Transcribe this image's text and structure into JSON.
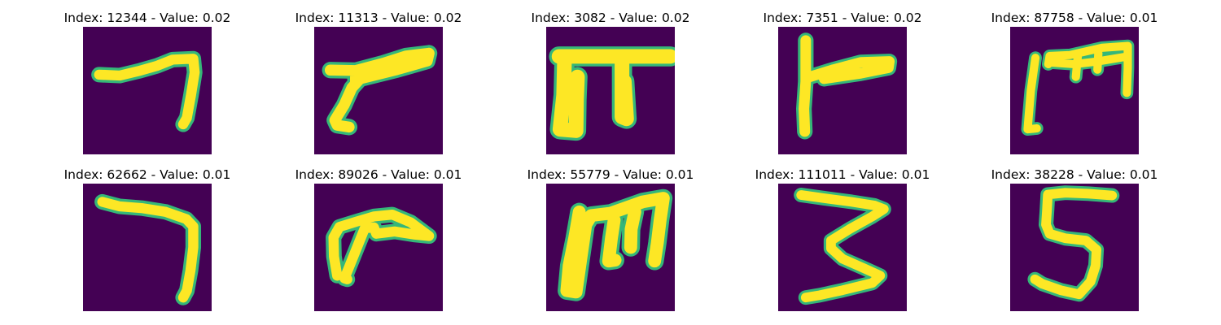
{
  "colors": {
    "background": "#440154",
    "stroke": "#fde725",
    "edge_mid": "#35b779",
    "edge_low": "#31688e"
  },
  "panels": [
    {
      "title": "Index: 12344 - Value: 0.02",
      "glyph": "seven-glyph-1"
    },
    {
      "title": "Index: 11313 - Value: 0.02",
      "glyph": "seven-glyph-2"
    },
    {
      "title": "Index: 3082 - Value: 0.02",
      "glyph": "pi-glyph"
    },
    {
      "title": "Index: 7351 - Value: 0.02",
      "glyph": "seven-glyph-3"
    },
    {
      "title": "Index: 87758 - Value: 0.01",
      "glyph": "m-glyph-1"
    },
    {
      "title": "Index: 62662 - Value: 0.01",
      "glyph": "seven-glyph-4"
    },
    {
      "title": "Index: 89026 - Value: 0.01",
      "glyph": "seven-glyph-5"
    },
    {
      "title": "Index: 55779 - Value: 0.01",
      "glyph": "m-glyph-2"
    },
    {
      "title": "Index: 111011 - Value: 0.01",
      "glyph": "three-glyph"
    },
    {
      "title": "Index: 38228 - Value: 0.01",
      "glyph": "five-glyph"
    }
  ]
}
